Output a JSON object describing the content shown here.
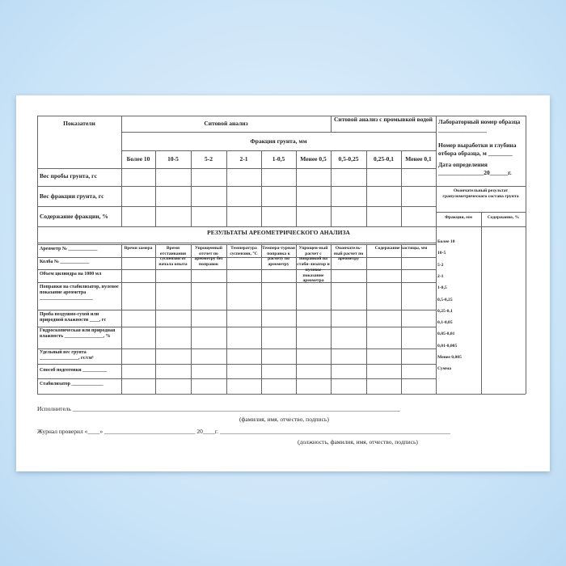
{
  "header": {
    "indicators": "Показатели",
    "sieve": "Ситовой анализ",
    "sieve_wash": "Ситовой анализ с промывкой водой",
    "fraction": "Фракция грунта, мм",
    "columns": [
      "Более 10",
      "10-5",
      "5-2",
      "2-1",
      "1-0,5",
      "Менее 0,5",
      "0,5-0,25",
      "0,25-0,1",
      "Менее 0,1"
    ]
  },
  "rows": [
    "Вес пробы грунта, гс",
    "Вес фракции грунта, гс",
    "Содержание фракции, %"
  ],
  "info": {
    "lab": "Лабораторный номер образца ________________",
    "depth": "Номер выработки и глубина отбора образца, м ________",
    "date_label": "Дата определения",
    "date_line": "_______________20______г."
  },
  "final": {
    "title": "Окончательный результат гранулометрического состава грунта",
    "col_fraction": "Фракция, мм",
    "col_content": "Содержание, %",
    "fractions": [
      "Более 10",
      "10-5",
      "5-2",
      "2-1",
      "1-0,5",
      "0,5-0,25",
      "0,25-0,1",
      "0,1-0,05",
      "0,05-0,01",
      "0,01-0,005",
      "Менее 0,005",
      "Сумма"
    ]
  },
  "areo": {
    "title": "РЕЗУЛЬТАТЫ АРЕОМЕТРИЧЕСКОГО АНАЛИЗА",
    "left": [
      "Ареометр № ____________",
      "Колба № ____________",
      "Объем цилиндра на 1000 мл",
      "Поправки на стабилизатор, нулевое показание ареометра ______________________",
      "Проба воздушно-сухой или природной влажности ____, гс",
      "Гидроскопическая или природная влажность ________________, %",
      "Удельный вес грунта ________________, гс/см³",
      "Способ подготовки __________",
      "Стабилизатор _____________"
    ],
    "columns": [
      "Время замера",
      "Время отстаивания суспензии от начала опыта",
      "Упрощенный отсчет по ареометру без поправок",
      "Температура суспензии, °С",
      "Темпера-турная поправка к расчету по ареометру",
      "Упрощен-ный расчет с поправкой на стаби-лизатор и нулевое показание ареометра",
      "Окончатель-ный расчет по ареометру",
      "Содержание частицы, мм"
    ]
  },
  "footer": {
    "executor": "Исполнитель ____________________________________________________________________________________________________________",
    "executor_hint": "(фамилия, имя, отчество, подпись)",
    "checked": "Журнал проверил «____» ______________________________ 20____г. ____________________________________________________________________________",
    "checked_hint": "(должность, фамилия, имя, отчество, подпись)"
  }
}
